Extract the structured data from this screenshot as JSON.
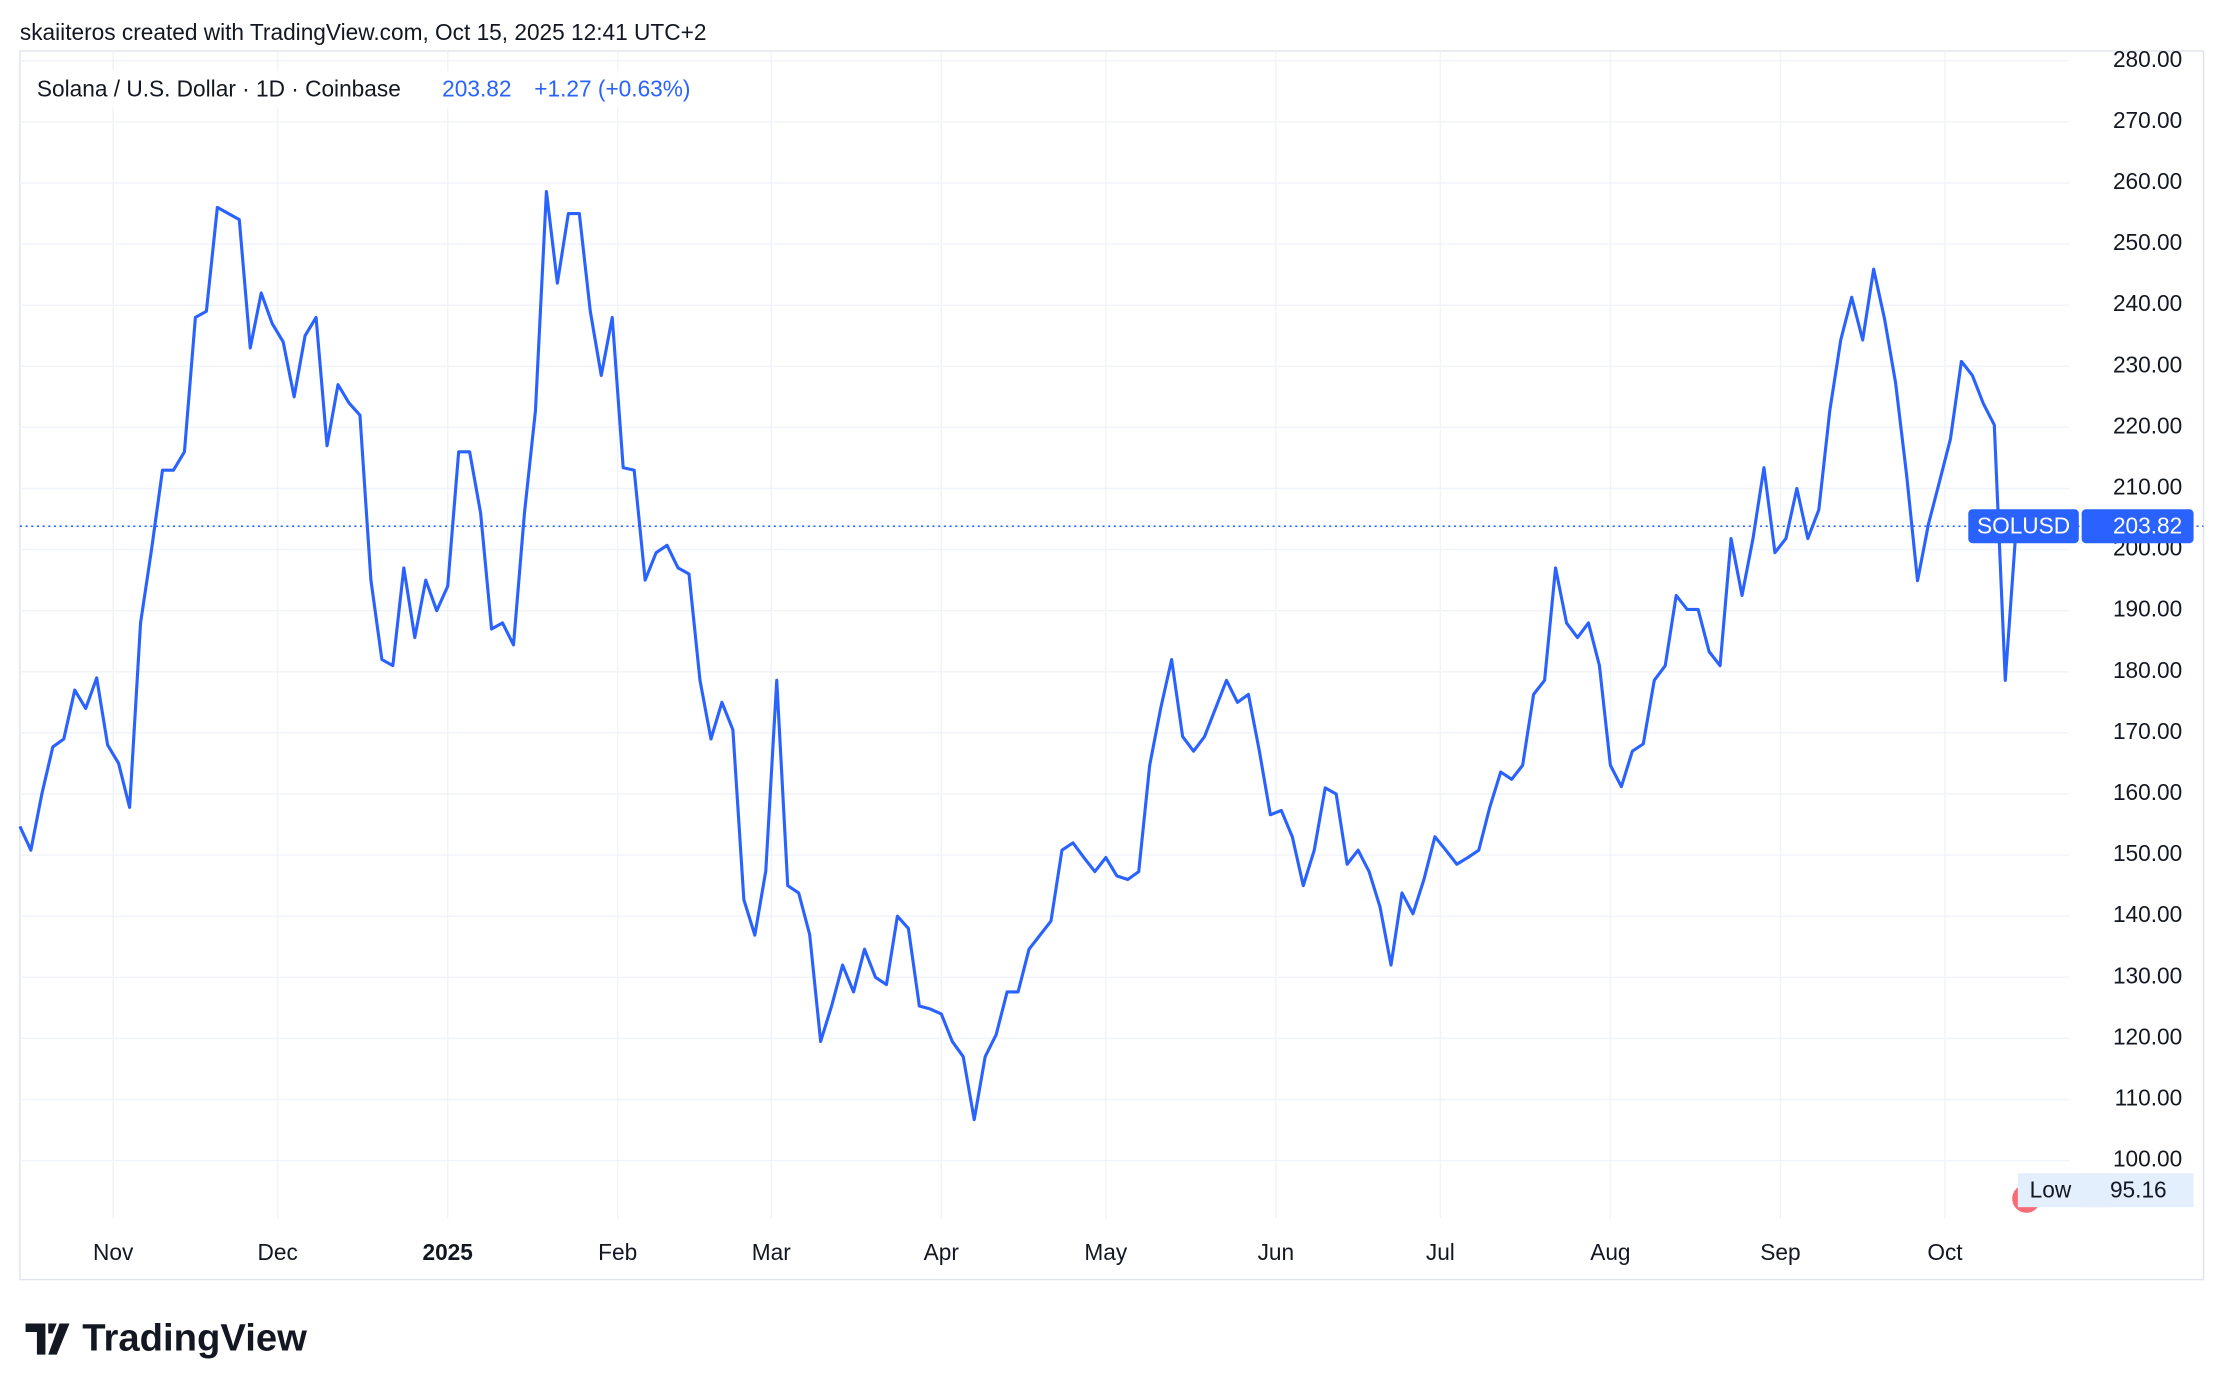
{
  "header": {
    "caption": "skaiiteros created with TradingView.com, Oct 15, 2025 12:41 UTC+2",
    "logo": "TradingView"
  },
  "chart_data": {
    "type": "line",
    "title": "Solana / U.S. Dollar · 1D · Coinbase",
    "last_price": 203.82,
    "change": "+1.27 (+0.63%)",
    "symbol": "SOLUSD",
    "low": {
      "label": "Low",
      "value": 95.16
    },
    "series": [
      {
        "name": "SOLUSD",
        "color": "#2962ff",
        "values": [
          154.7,
          150.8,
          160,
          167.7,
          169,
          177,
          174,
          179,
          168,
          165,
          157.8,
          188,
          200,
          213,
          213,
          216,
          238,
          239,
          256,
          255,
          254,
          233,
          242,
          237,
          234,
          225,
          235,
          238,
          217,
          227,
          224,
          222,
          195,
          182,
          181,
          197,
          185.6,
          195,
          190,
          194,
          216,
          216,
          206,
          187,
          188,
          184.4,
          206,
          222.7,
          258.6,
          243.6,
          255,
          255,
          239,
          228.5,
          238,
          213.4,
          213,
          195,
          199.5,
          200.7,
          197,
          196,
          178.6,
          169,
          175,
          170.5,
          142.7,
          136.9,
          147.4,
          178.6,
          145,
          143.8,
          137,
          119.5,
          125.3,
          132,
          127.6,
          134.6,
          130,
          128.8,
          140,
          138,
          125.3,
          124.8,
          124,
          119.5,
          117,
          106.7,
          117,
          120.6,
          127.6,
          127.6,
          134.6,
          136.9,
          139.2,
          150.8,
          152,
          149.6,
          147.3,
          149.6,
          146.6,
          146,
          147.3,
          164.7,
          174,
          182,
          169.4,
          167,
          169.4,
          174,
          178.6,
          175,
          176.3,
          167,
          156.6,
          157.3,
          153,
          145,
          150.8,
          161,
          160,
          148.5,
          150.8,
          147.3,
          141.5,
          132,
          143.8,
          140.4,
          146,
          153,
          150.8,
          148.5,
          149.6,
          150.8,
          157.8,
          163.6,
          162.4,
          164.7,
          176.3,
          178.6,
          197,
          188,
          185.6,
          188,
          181,
          164.7,
          161.2,
          167,
          168.2,
          178.6,
          181,
          192.5,
          190.2,
          190.2,
          183.3,
          181,
          201.8,
          192.5,
          201.8,
          213.4,
          199.5,
          201.8,
          210,
          201.8,
          206.5,
          222.7,
          234.3,
          241.3,
          234.3,
          245.9,
          237.7,
          227.3,
          212.3,
          194.9,
          204.2,
          211.1,
          218.1,
          230.8,
          228.5,
          223.9,
          220.4,
          178.6,
          203.82
        ]
      }
    ],
    "xlim": [
      0,
      186.8
    ],
    "xticks": [
      {
        "value": 8.5,
        "label": "Nov"
      },
      {
        "value": 23.5,
        "label": "Dec"
      },
      {
        "value": 39,
        "label": "2025"
      },
      {
        "value": 54.5,
        "label": "Feb"
      },
      {
        "value": 68.5,
        "label": "Mar"
      },
      {
        "value": 84,
        "label": "Apr"
      },
      {
        "value": 99,
        "label": "May"
      },
      {
        "value": 114.5,
        "label": "Jun"
      },
      {
        "value": 129.5,
        "label": "Jul"
      },
      {
        "value": 145,
        "label": "Aug"
      },
      {
        "value": 160.5,
        "label": "Sep"
      },
      {
        "value": 175.5,
        "label": "Oct"
      }
    ],
    "ylim": [
      90.5,
      281.6
    ],
    "yticks": [
      {
        "value": 100,
        "label": "100.00"
      },
      {
        "value": 110,
        "label": "110.00"
      },
      {
        "value": 120,
        "label": "120.00"
      },
      {
        "value": 130,
        "label": "130.00"
      },
      {
        "value": 140,
        "label": "140.00"
      },
      {
        "value": 150,
        "label": "150.00"
      },
      {
        "value": 160,
        "label": "160.00"
      },
      {
        "value": 170,
        "label": "170.00"
      },
      {
        "value": 180,
        "label": "180.00"
      },
      {
        "value": 190,
        "label": "190.00"
      },
      {
        "value": 200,
        "label": "200.00"
      },
      {
        "value": 210,
        "label": "210.00"
      },
      {
        "value": 220,
        "label": "220.00"
      },
      {
        "value": 230,
        "label": "230.00"
      },
      {
        "value": 240,
        "label": "240.00"
      },
      {
        "value": 250,
        "label": "250.00"
      },
      {
        "value": 260,
        "label": "260.00"
      },
      {
        "value": 270,
        "label": "270.00"
      },
      {
        "value": 280,
        "label": "280.00"
      }
    ],
    "grid": true
  }
}
